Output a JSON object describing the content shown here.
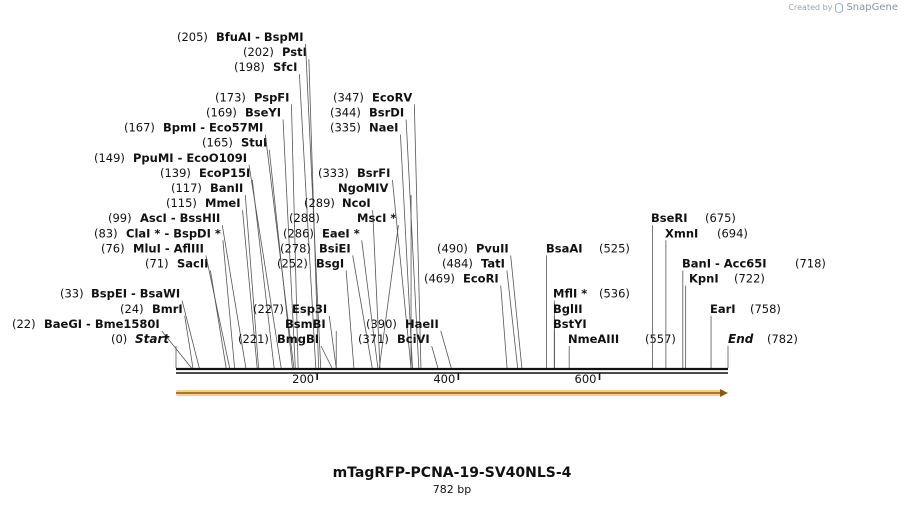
{
  "credit": {
    "prefix": "Created by",
    "brand": "SnapGene",
    "icon": "snapgene-logo-icon"
  },
  "map": {
    "name": "mTagRFP-PCNA-19-SV40NLS-4",
    "length_label": "782 bp",
    "length_bp": 782,
    "ticks": [
      200,
      400,
      600
    ],
    "start": {
      "position": 0,
      "position_label": "(0)",
      "name": "Start"
    },
    "end": {
      "position": 782,
      "position_label": "(782)",
      "name": "End"
    },
    "feature": {
      "name": "insert-arrow",
      "color": "#f5a623",
      "start": 0,
      "end": 782
    },
    "sites": [
      {
        "pos": 22,
        "label": "(22)",
        "name": "BaeGI  - Bme1580I"
      },
      {
        "pos": 24,
        "label": "(24)",
        "name": "BmrI"
      },
      {
        "pos": 33,
        "label": "(33)",
        "name": "BspEI  - BsaWI"
      },
      {
        "pos": 71,
        "label": "(71)",
        "name": "SacII"
      },
      {
        "pos": 76,
        "label": "(76)",
        "name": "MluI  - AflIII"
      },
      {
        "pos": 83,
        "label": "(83)",
        "name": "ClaI *  - BspDI *"
      },
      {
        "pos": 99,
        "label": "(99)",
        "name": "AscI  - BssHII"
      },
      {
        "pos": 115,
        "label": "(115)",
        "name": "MmeI"
      },
      {
        "pos": 117,
        "label": "(117)",
        "name": "BanII"
      },
      {
        "pos": 139,
        "label": "(139)",
        "name": "EcoP15I"
      },
      {
        "pos": 149,
        "label": "(149)",
        "name": "PpuMI  - EcoO109I"
      },
      {
        "pos": 165,
        "label": "(165)",
        "name": "StuI"
      },
      {
        "pos": 167,
        "label": "(167)",
        "name": "BpmI  - Eco57MI"
      },
      {
        "pos": 169,
        "label": "(169)",
        "name": "BseYI"
      },
      {
        "pos": 173,
        "label": "(173)",
        "name": "PspFI"
      },
      {
        "pos": 198,
        "label": "(198)",
        "name": "SfcI"
      },
      {
        "pos": 202,
        "label": "(202)",
        "name": "PstI"
      },
      {
        "pos": 205,
        "label": "(205)",
        "name": "BfuAI  - BspMI"
      },
      {
        "pos": 221,
        "label": "(221)",
        "name": "BmgBI"
      },
      {
        "pos": 227,
        "label": "(227)",
        "name": "Esp3I"
      },
      {
        "pos": 227,
        "label": "",
        "name": "BsmBI"
      },
      {
        "pos": 252,
        "label": "(252)",
        "name": "BsgI"
      },
      {
        "pos": 278,
        "label": "(278)",
        "name": "BsiEI"
      },
      {
        "pos": 286,
        "label": "(286)",
        "name": "EaeI *"
      },
      {
        "pos": 288,
        "label": "(288)",
        "name": "MscI *"
      },
      {
        "pos": 289,
        "label": "(289)",
        "name": "NcoI"
      },
      {
        "pos": 333,
        "label": "(333)",
        "name": "BsrFI"
      },
      {
        "pos": 333,
        "label": "",
        "name": "NgoMIV"
      },
      {
        "pos": 335,
        "label": "(335)",
        "name": "NaeI"
      },
      {
        "pos": 344,
        "label": "(344)",
        "name": "BsrDI"
      },
      {
        "pos": 347,
        "label": "(347)",
        "name": "EcoRV"
      },
      {
        "pos": 371,
        "label": "(371)",
        "name": "BciVI"
      },
      {
        "pos": 390,
        "label": "(390)",
        "name": "HaeII"
      },
      {
        "pos": 469,
        "label": "(469)",
        "name": "EcoRI"
      },
      {
        "pos": 484,
        "label": "(484)",
        "name": "TatI"
      },
      {
        "pos": 490,
        "label": "(490)",
        "name": "PvuII"
      },
      {
        "pos": 525,
        "label": "(525)",
        "name": "BsaAI"
      },
      {
        "pos": 536,
        "label": "(536)",
        "name": "MflI *"
      },
      {
        "pos": 536,
        "label": "",
        "name": "BglII"
      },
      {
        "pos": 536,
        "label": "",
        "name": "BstYI"
      },
      {
        "pos": 557,
        "label": "(557)",
        "name": "NmeAIII"
      },
      {
        "pos": 675,
        "label": "(675)",
        "name": "BseRI"
      },
      {
        "pos": 694,
        "label": "(694)",
        "name": "XmnI"
      },
      {
        "pos": 718,
        "label": "(718)",
        "name": "BanI  - Acc65I"
      },
      {
        "pos": 722,
        "label": "(722)",
        "name": "KpnI"
      },
      {
        "pos": 758,
        "label": "(758)",
        "name": "EarI"
      }
    ]
  }
}
